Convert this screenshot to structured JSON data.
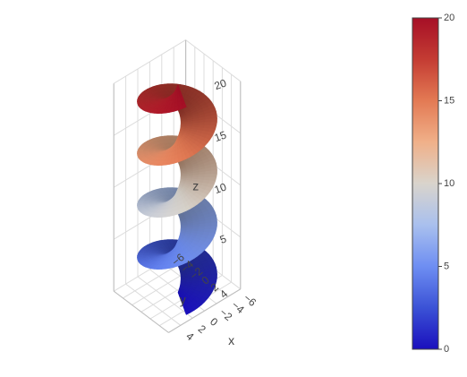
{
  "chart_data": {
    "type": "surface",
    "surface": "helicoid",
    "title": "",
    "axes": {
      "x": {
        "label": "x",
        "range": [
          -6,
          6
        ],
        "ticks": [
          -6,
          -4,
          -2,
          0,
          2,
          4,
          6
        ],
        "tick_labels": [
          "−6",
          "−4",
          "−2",
          "0",
          "2",
          "4",
          ""
        ]
      },
      "y": {
        "label": "y",
        "range": [
          -6,
          6
        ],
        "ticks": [
          -6,
          -4,
          -2,
          0,
          2,
          4,
          6
        ],
        "tick_labels": [
          "−6",
          "−4",
          "−2",
          "0",
          "2",
          "4",
          ""
        ]
      },
      "z": {
        "label": "z",
        "range": [
          0,
          20
        ],
        "ticks": [
          5,
          10,
          15,
          20
        ],
        "tick_labels": [
          "5",
          "10",
          "15",
          "20"
        ]
      }
    },
    "turns": 4,
    "inner_radius": 0.5,
    "outer_radius": 5.3,
    "z_range": [
      0,
      20
    ],
    "colorscale": {
      "name": "coolwarm",
      "stops": [
        "#1a0fbd",
        "#3b52d6",
        "#6e8ef2",
        "#a9c0ee",
        "#d9d4cc",
        "#f0b089",
        "#e37a54",
        "#c43c33",
        "#a60f26"
      ],
      "cmin": 0,
      "cmax": 20,
      "tick_values": [
        0,
        5,
        10,
        15,
        20
      ],
      "tick_labels": [
        "0",
        "5",
        "10",
        "15",
        "20"
      ]
    },
    "grid": true,
    "colorbar_position": "right"
  }
}
